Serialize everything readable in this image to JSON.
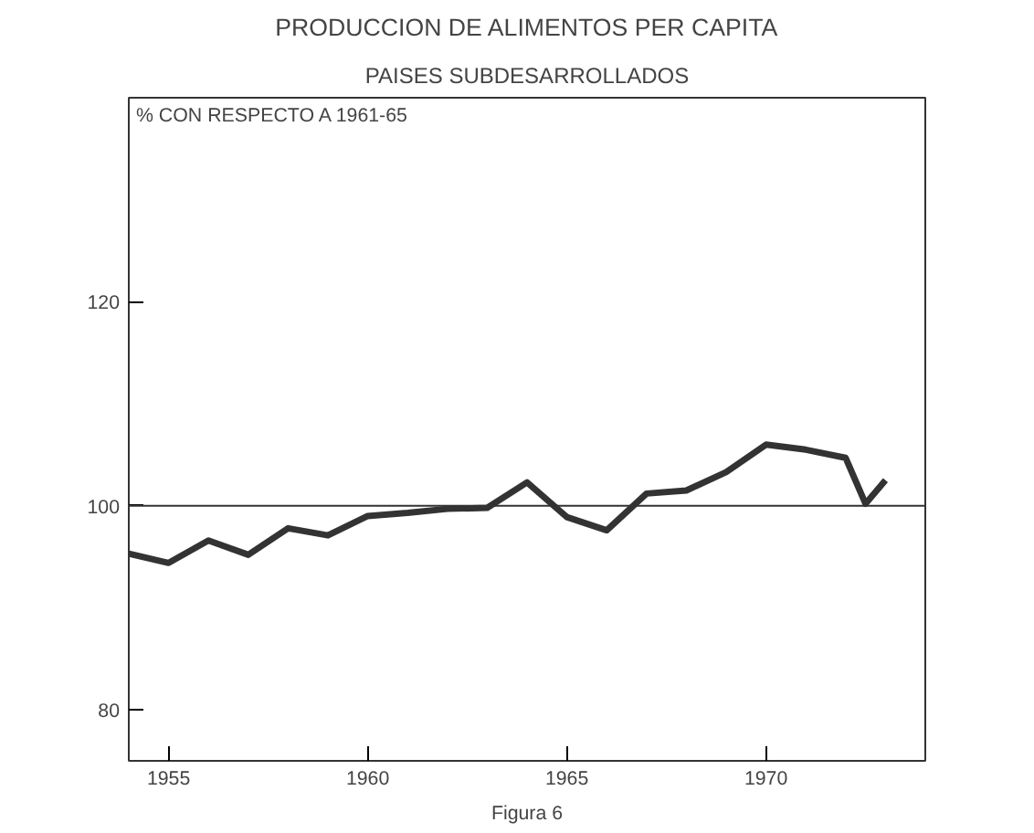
{
  "chart_data": {
    "type": "line",
    "title": "PRODUCCION DE ALIMENTOS PER CAPITA",
    "subtitle": "PAISES SUBDESARROLLADOS",
    "ylabel": "% CON RESPECTO A 1961-65",
    "x": [
      1954,
      1955,
      1956,
      1957,
      1958,
      1959,
      1960,
      1961,
      1962,
      1963,
      1964,
      1965,
      1966,
      1967,
      1968,
      1969,
      1970,
      1971,
      1972,
      1972.5,
      1973
    ],
    "series": [
      {
        "color": "#333333",
        "values": [
          95.3,
          94.4,
          96.6,
          95.2,
          97.8,
          97.1,
          99.0,
          99.3,
          99.7,
          99.8,
          102.3,
          98.9,
          97.6,
          101.2,
          101.5,
          103.3,
          106.0,
          105.5,
          104.7,
          100.2,
          102.5
        ]
      }
    ],
    "xlim": [
      1954,
      1974
    ],
    "xticks": [
      1955,
      1960,
      1965,
      1970
    ],
    "ylim": [
      75,
      140
    ],
    "yticks": [
      80,
      100,
      120
    ],
    "ref_lines": [
      {
        "axis": "y",
        "value": 100,
        "color": "#333333"
      }
    ],
    "annotations": [
      "Figura 6"
    ],
    "grid": false,
    "marker": "none",
    "line_style": "solid"
  }
}
